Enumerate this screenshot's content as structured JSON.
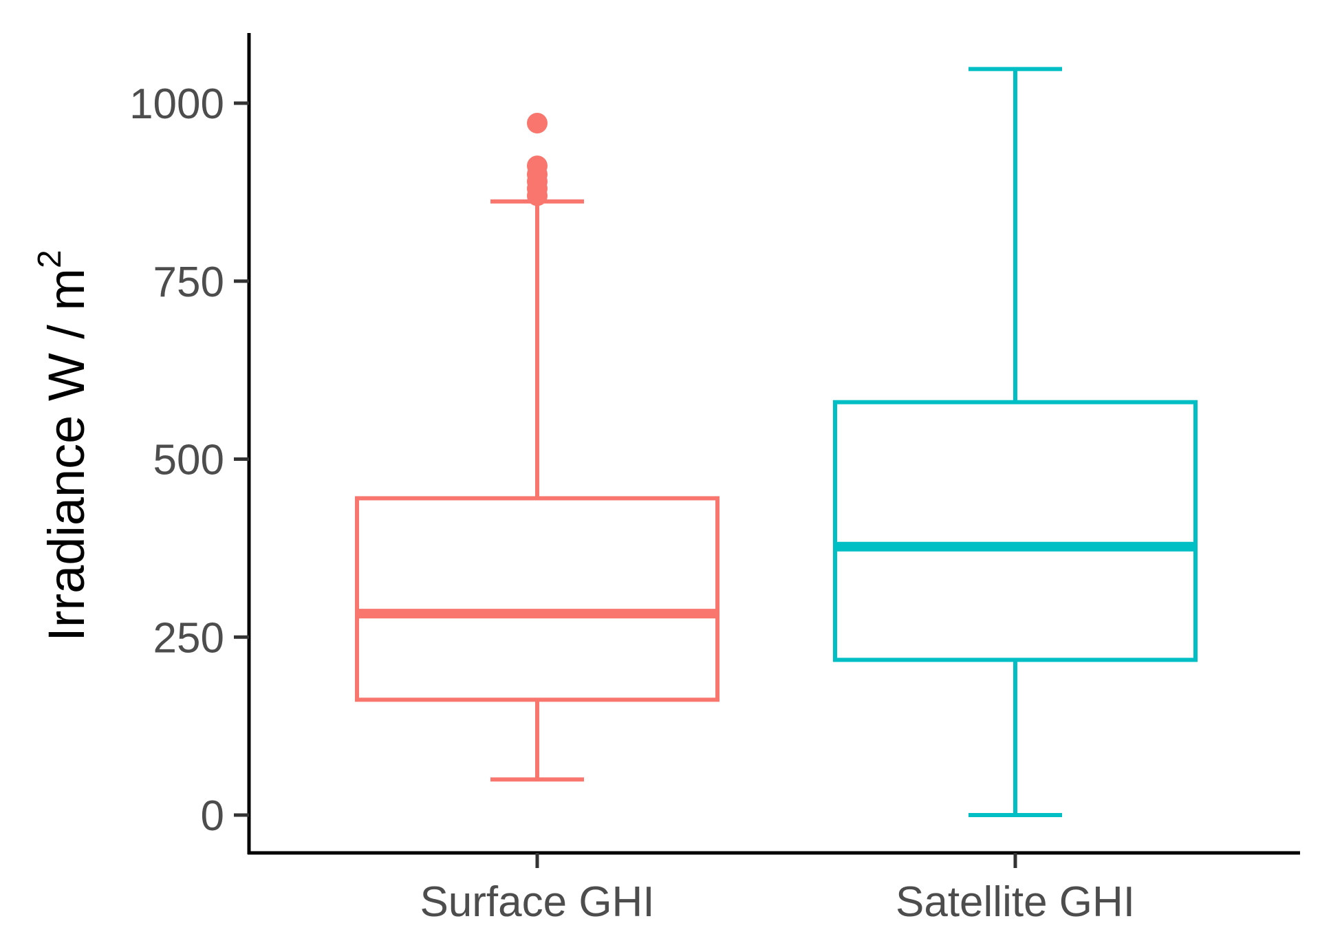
{
  "chart_data": {
    "type": "boxplot",
    "title": "",
    "xlabel": "",
    "ylabel": {
      "text": "Irradiance W / m",
      "superscript": "2"
    },
    "ylim": [
      -50,
      1100
    ],
    "y_ticks": [
      0,
      250,
      500,
      750,
      1000
    ],
    "y_tick_labels": [
      "0",
      "250",
      "500",
      "750",
      "1000"
    ],
    "grid": false,
    "legend": "none",
    "categories": [
      "Surface GHI",
      "Satellite GHI"
    ],
    "series": [
      {
        "category": "Surface GHI",
        "color": "#F8766D",
        "whisker_low": 50,
        "q1": 162,
        "median": 283,
        "q3": 445,
        "whisker_high": 862,
        "outliers": [
          972,
          912,
          900,
          890,
          880,
          870
        ]
      },
      {
        "category": "Satellite GHI",
        "color": "#00BFC4",
        "whisker_low": 0,
        "q1": 218,
        "median": 377,
        "q3": 580,
        "whisker_high": 1048,
        "outliers": []
      }
    ]
  }
}
